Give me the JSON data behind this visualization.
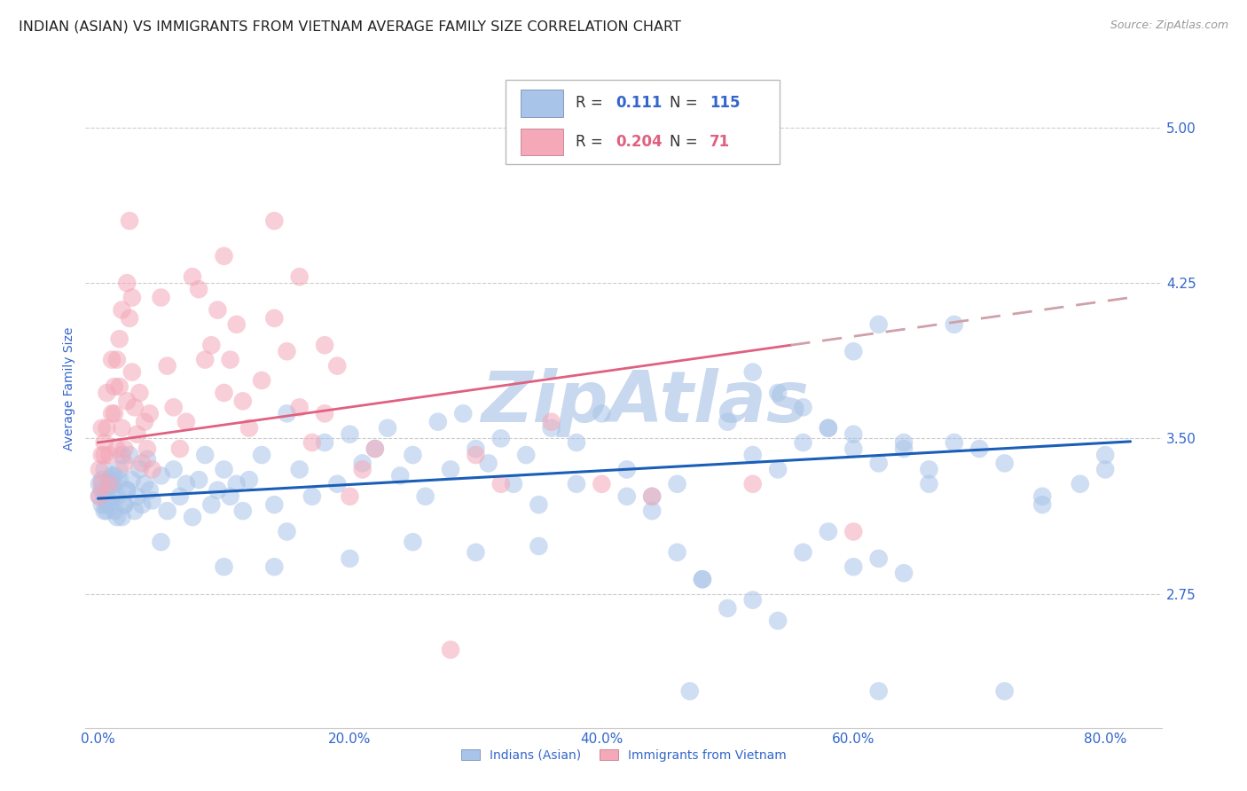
{
  "title": "INDIAN (ASIAN) VS IMMIGRANTS FROM VIETNAM AVERAGE FAMILY SIZE CORRELATION CHART",
  "source": "Source: ZipAtlas.com",
  "ylabel": "Average Family Size",
  "xlabel_ticks": [
    "0.0%",
    "20.0%",
    "40.0%",
    "60.0%",
    "80.0%"
  ],
  "xlabel_vals": [
    0.0,
    0.2,
    0.4,
    0.6,
    0.8
  ],
  "ytick_vals": [
    2.75,
    3.5,
    4.25,
    5.0
  ],
  "ytick_labels": [
    "2.75",
    "3.50",
    "4.25",
    "5.00"
  ],
  "xlim": [
    -0.01,
    0.845
  ],
  "ylim": [
    2.1,
    5.38
  ],
  "watermark": "ZipAtlas",
  "blue_color": "#a8c4e8",
  "pink_color": "#f4a8b8",
  "blue_line_color": "#1a5eb8",
  "pink_line_solid_color": "#e06080",
  "pink_line_dash_color": "#d0a0a8",
  "blue_line": {
    "x0": 0.0,
    "y0": 3.21,
    "x1": 0.82,
    "y1": 3.485
  },
  "pink_line_solid": {
    "x0": 0.0,
    "y0": 3.48,
    "x1": 0.55,
    "y1": 3.95
  },
  "pink_line_dash": {
    "x0": 0.55,
    "y0": 3.95,
    "x1": 0.82,
    "y1": 4.18
  },
  "blue_scatter": [
    [
      0.005,
      3.22
    ],
    [
      0.007,
      3.18
    ],
    [
      0.009,
      3.28
    ],
    [
      0.011,
      3.32
    ],
    [
      0.013,
      3.15
    ],
    [
      0.015,
      3.22
    ],
    [
      0.017,
      3.35
    ],
    [
      0.019,
      3.12
    ],
    [
      0.021,
      3.18
    ],
    [
      0.023,
      3.25
    ],
    [
      0.025,
      3.42
    ],
    [
      0.027,
      3.3
    ],
    [
      0.029,
      3.15
    ],
    [
      0.031,
      3.22
    ],
    [
      0.033,
      3.35
    ],
    [
      0.035,
      3.18
    ],
    [
      0.037,
      3.28
    ],
    [
      0.039,
      3.4
    ],
    [
      0.041,
      3.25
    ],
    [
      0.043,
      3.2
    ],
    [
      0.005,
      3.35
    ],
    [
      0.007,
      3.15
    ],
    [
      0.009,
      3.3
    ],
    [
      0.011,
      3.22
    ],
    [
      0.013,
      3.28
    ],
    [
      0.015,
      3.12
    ],
    [
      0.017,
      3.3
    ],
    [
      0.019,
      3.42
    ],
    [
      0.021,
      3.18
    ],
    [
      0.023,
      3.25
    ],
    [
      0.005,
      3.15
    ],
    [
      0.007,
      3.22
    ],
    [
      0.009,
      3.18
    ],
    [
      0.011,
      3.28
    ],
    [
      0.013,
      3.32
    ],
    [
      0.003,
      3.25
    ],
    [
      0.003,
      3.18
    ],
    [
      0.003,
      3.3
    ],
    [
      0.001,
      3.22
    ],
    [
      0.001,
      3.28
    ],
    [
      0.05,
      3.32
    ],
    [
      0.055,
      3.15
    ],
    [
      0.06,
      3.35
    ],
    [
      0.065,
      3.22
    ],
    [
      0.07,
      3.28
    ],
    [
      0.075,
      3.12
    ],
    [
      0.08,
      3.3
    ],
    [
      0.085,
      3.42
    ],
    [
      0.09,
      3.18
    ],
    [
      0.095,
      3.25
    ],
    [
      0.1,
      3.35
    ],
    [
      0.105,
      3.22
    ],
    [
      0.11,
      3.28
    ],
    [
      0.115,
      3.15
    ],
    [
      0.12,
      3.3
    ],
    [
      0.13,
      3.42
    ],
    [
      0.14,
      3.18
    ],
    [
      0.15,
      3.62
    ],
    [
      0.16,
      3.35
    ],
    [
      0.17,
      3.22
    ],
    [
      0.18,
      3.48
    ],
    [
      0.19,
      3.28
    ],
    [
      0.2,
      3.52
    ],
    [
      0.21,
      3.38
    ],
    [
      0.22,
      3.45
    ],
    [
      0.23,
      3.55
    ],
    [
      0.24,
      3.32
    ],
    [
      0.25,
      3.42
    ],
    [
      0.26,
      3.22
    ],
    [
      0.27,
      3.58
    ],
    [
      0.28,
      3.35
    ],
    [
      0.29,
      3.62
    ],
    [
      0.3,
      3.45
    ],
    [
      0.31,
      3.38
    ],
    [
      0.32,
      3.5
    ],
    [
      0.33,
      3.28
    ],
    [
      0.34,
      3.42
    ],
    [
      0.35,
      3.18
    ],
    [
      0.36,
      3.55
    ],
    [
      0.38,
      3.48
    ],
    [
      0.4,
      3.62
    ],
    [
      0.42,
      3.35
    ],
    [
      0.44,
      3.22
    ],
    [
      0.46,
      3.28
    ],
    [
      0.48,
      2.82
    ],
    [
      0.5,
      3.58
    ],
    [
      0.52,
      3.42
    ],
    [
      0.54,
      3.35
    ],
    [
      0.56,
      3.48
    ],
    [
      0.58,
      3.55
    ],
    [
      0.6,
      3.52
    ],
    [
      0.62,
      3.38
    ],
    [
      0.64,
      3.45
    ],
    [
      0.66,
      3.28
    ],
    [
      0.68,
      4.05
    ],
    [
      0.52,
      3.82
    ],
    [
      0.54,
      3.72
    ],
    [
      0.56,
      3.65
    ],
    [
      0.58,
      3.55
    ],
    [
      0.6,
      3.45
    ],
    [
      0.46,
      2.95
    ],
    [
      0.48,
      2.82
    ],
    [
      0.5,
      2.68
    ],
    [
      0.52,
      2.72
    ],
    [
      0.54,
      2.62
    ],
    [
      0.56,
      2.95
    ],
    [
      0.58,
      3.05
    ],
    [
      0.6,
      2.88
    ],
    [
      0.62,
      2.92
    ],
    [
      0.64,
      2.85
    ],
    [
      0.64,
      3.48
    ],
    [
      0.66,
      3.35
    ],
    [
      0.68,
      3.48
    ],
    [
      0.7,
      3.45
    ],
    [
      0.72,
      3.38
    ],
    [
      0.75,
      3.22
    ],
    [
      0.78,
      3.28
    ],
    [
      0.8,
      3.35
    ],
    [
      0.6,
      3.92
    ],
    [
      0.62,
      4.05
    ],
    [
      0.05,
      3.0
    ],
    [
      0.1,
      2.88
    ],
    [
      0.15,
      3.05
    ],
    [
      0.2,
      2.92
    ],
    [
      0.25,
      3.0
    ],
    [
      0.3,
      2.95
    ],
    [
      0.35,
      2.98
    ],
    [
      0.38,
      3.28
    ],
    [
      0.42,
      3.22
    ],
    [
      0.44,
      3.15
    ],
    [
      0.72,
      2.28
    ],
    [
      0.8,
      3.42
    ],
    [
      0.75,
      3.18
    ],
    [
      0.14,
      2.88
    ],
    [
      0.47,
      2.28
    ],
    [
      0.62,
      2.28
    ]
  ],
  "pink_scatter": [
    [
      0.005,
      3.42
    ],
    [
      0.007,
      3.55
    ],
    [
      0.009,
      3.28
    ],
    [
      0.011,
      3.62
    ],
    [
      0.013,
      3.75
    ],
    [
      0.015,
      3.88
    ],
    [
      0.017,
      3.98
    ],
    [
      0.019,
      4.12
    ],
    [
      0.021,
      3.45
    ],
    [
      0.023,
      3.68
    ],
    [
      0.025,
      4.08
    ],
    [
      0.027,
      3.82
    ],
    [
      0.029,
      3.65
    ],
    [
      0.031,
      3.52
    ],
    [
      0.033,
      3.72
    ],
    [
      0.035,
      3.38
    ],
    [
      0.037,
      3.58
    ],
    [
      0.039,
      3.45
    ],
    [
      0.041,
      3.62
    ],
    [
      0.043,
      3.35
    ],
    [
      0.003,
      3.55
    ],
    [
      0.005,
      3.48
    ],
    [
      0.007,
      3.72
    ],
    [
      0.009,
      3.42
    ],
    [
      0.011,
      3.88
    ],
    [
      0.013,
      3.62
    ],
    [
      0.015,
      3.45
    ],
    [
      0.017,
      3.75
    ],
    [
      0.019,
      3.55
    ],
    [
      0.021,
      3.38
    ],
    [
      0.003,
      3.42
    ],
    [
      0.003,
      3.28
    ],
    [
      0.001,
      3.35
    ],
    [
      0.001,
      3.22
    ],
    [
      0.05,
      4.18
    ],
    [
      0.055,
      3.85
    ],
    [
      0.06,
      3.65
    ],
    [
      0.065,
      3.45
    ],
    [
      0.07,
      3.58
    ],
    [
      0.075,
      4.28
    ],
    [
      0.08,
      4.22
    ],
    [
      0.085,
      3.88
    ],
    [
      0.09,
      3.95
    ],
    [
      0.095,
      4.12
    ],
    [
      0.1,
      3.72
    ],
    [
      0.105,
      3.88
    ],
    [
      0.11,
      4.05
    ],
    [
      0.115,
      3.68
    ],
    [
      0.12,
      3.55
    ],
    [
      0.13,
      3.78
    ],
    [
      0.14,
      4.08
    ],
    [
      0.15,
      3.92
    ],
    [
      0.16,
      3.65
    ],
    [
      0.17,
      3.48
    ],
    [
      0.18,
      3.62
    ],
    [
      0.19,
      3.85
    ],
    [
      0.2,
      3.22
    ],
    [
      0.21,
      3.35
    ],
    [
      0.22,
      3.45
    ],
    [
      0.025,
      4.55
    ],
    [
      0.14,
      4.55
    ],
    [
      0.1,
      4.38
    ],
    [
      0.023,
      4.25
    ],
    [
      0.027,
      4.18
    ],
    [
      0.16,
      4.28
    ],
    [
      0.18,
      3.95
    ],
    [
      0.4,
      3.28
    ],
    [
      0.44,
      3.22
    ],
    [
      0.3,
      3.42
    ],
    [
      0.32,
      3.28
    ],
    [
      0.36,
      3.58
    ],
    [
      0.28,
      2.48
    ],
    [
      0.52,
      3.28
    ],
    [
      0.6,
      3.05
    ]
  ],
  "title_fontsize": 11.5,
  "label_fontsize": 10,
  "tick_fontsize": 11,
  "legend_fontsize": 12,
  "title_color": "#222222",
  "axis_color": "#3366cc",
  "grid_color": "#cccccc",
  "watermark_color": "#c8d8ee",
  "watermark_fontsize": 58,
  "scatter_size": 220,
  "scatter_alpha": 0.55
}
